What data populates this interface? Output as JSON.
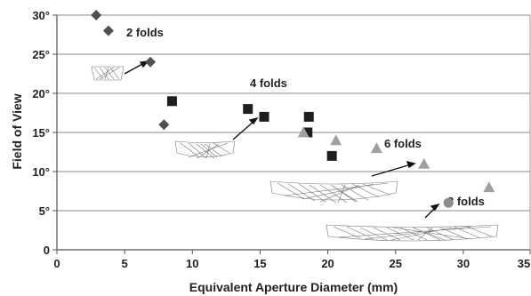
{
  "chart_data": {
    "type": "scatter",
    "title": "",
    "xlabel": "Equivalent Aperture Diameter (mm)",
    "ylabel": "Field of View",
    "xlim": [
      0,
      35
    ],
    "ylim": [
      0,
      30
    ],
    "xticks": [
      "0",
      "5",
      "10",
      "15",
      "20",
      "25",
      "30",
      "35"
    ],
    "yticks": [
      "0",
      "5°",
      "10°",
      "15°",
      "20°",
      "25°",
      "30°"
    ],
    "grid": "horizontal",
    "series": [
      {
        "name": "2 folds",
        "marker": "diamond",
        "color": "#505050",
        "points": [
          [
            2.9,
            30
          ],
          [
            3.8,
            28
          ],
          [
            6.9,
            24
          ],
          [
            7.9,
            16
          ]
        ]
      },
      {
        "name": "4 folds",
        "marker": "square",
        "color": "#1e1e1e",
        "points": [
          [
            8.5,
            19
          ],
          [
            14.1,
            18
          ],
          [
            15.3,
            17
          ],
          [
            18.6,
            17
          ],
          [
            18.5,
            15
          ],
          [
            20.3,
            12
          ]
        ]
      },
      {
        "name": "6 folds",
        "marker": "triangle",
        "color": "#a0a0a0",
        "points": [
          [
            18.2,
            15
          ],
          [
            20.6,
            14
          ],
          [
            23.6,
            13
          ],
          [
            27.1,
            11
          ],
          [
            31.9,
            8
          ]
        ]
      },
      {
        "name": "8 folds",
        "marker": "circle",
        "color": "#8c8c8c",
        "points": [
          [
            28.9,
            6
          ]
        ]
      }
    ],
    "annotations": [
      "2 folds",
      "4 folds",
      "6 folds",
      "8 folds"
    ]
  }
}
